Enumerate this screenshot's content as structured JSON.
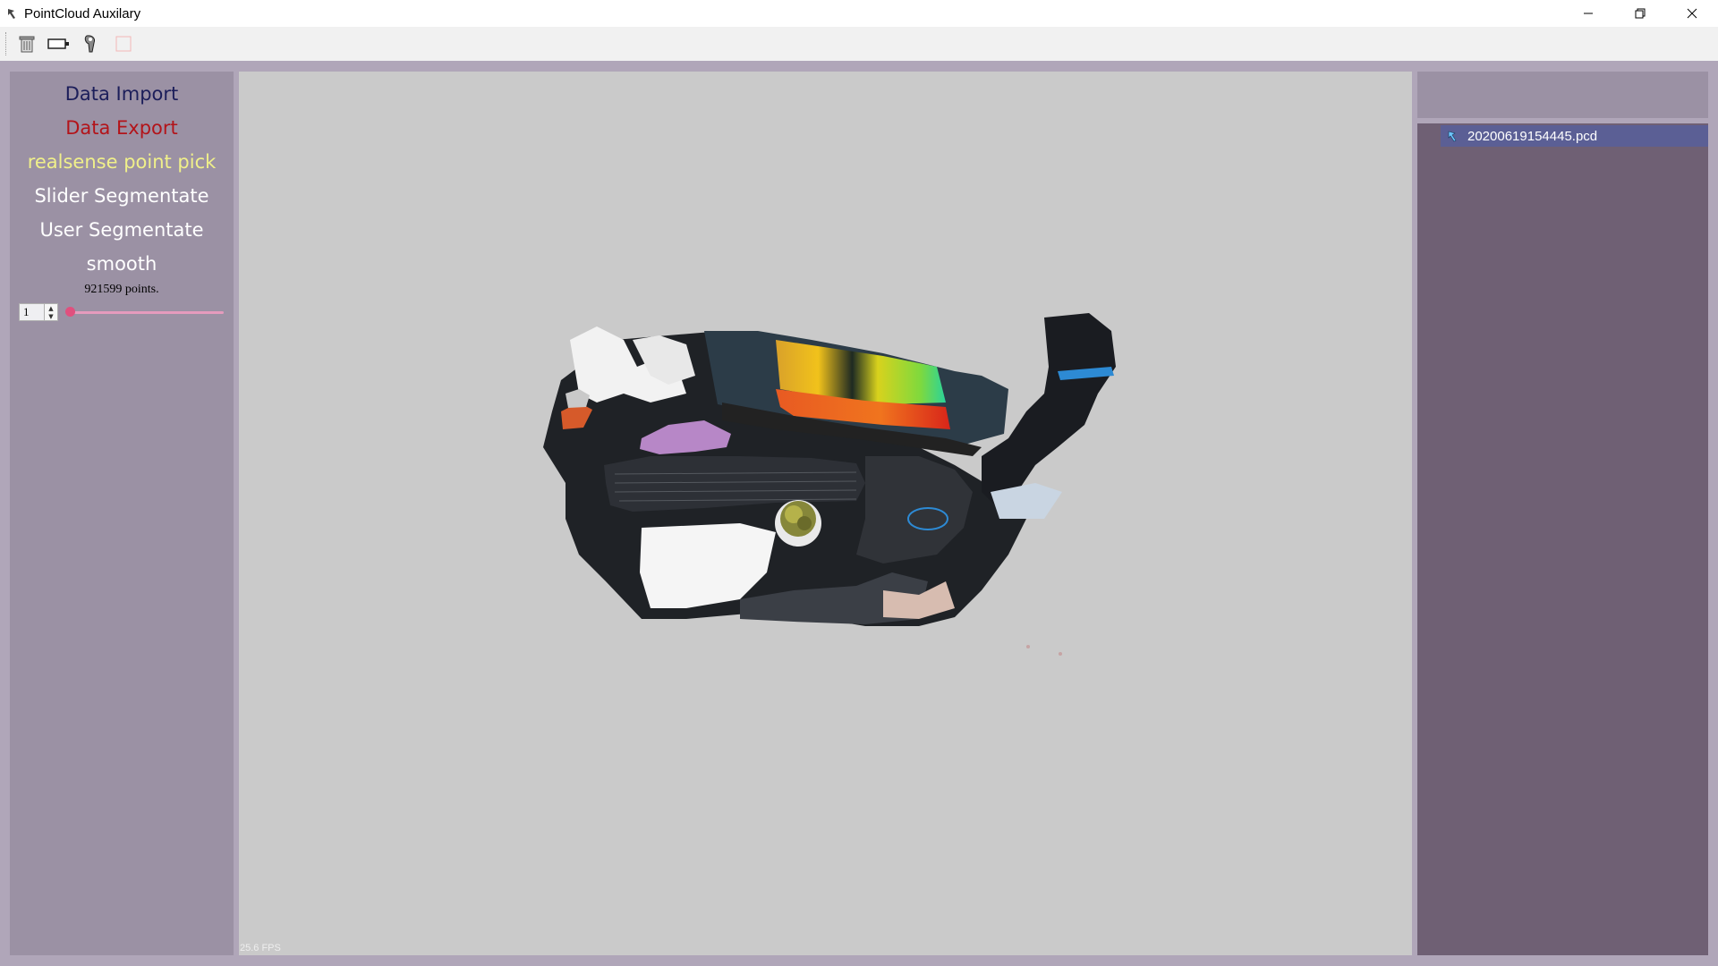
{
  "window": {
    "title": "PointCloud Auxilary"
  },
  "left_panel": {
    "menu": [
      {
        "label": "Data Import",
        "color": "#1c1e5a"
      },
      {
        "label": "Data Export",
        "color": "#b3141a"
      },
      {
        "label": "realsense point pick",
        "color": "#f0f08a"
      },
      {
        "label": "Slider Segmentate",
        "color": "#ffffff"
      },
      {
        "label": "User Segmentate",
        "color": "#ffffff"
      },
      {
        "label": "smooth",
        "color": "#ffffff"
      }
    ],
    "points_label": "921599 points.",
    "spin_value": "1",
    "slider_value": 0
  },
  "viewport": {
    "fps": "25.6 FPS"
  },
  "file_tree": {
    "items": [
      {
        "label": "20200619154445.pcd"
      }
    ]
  }
}
